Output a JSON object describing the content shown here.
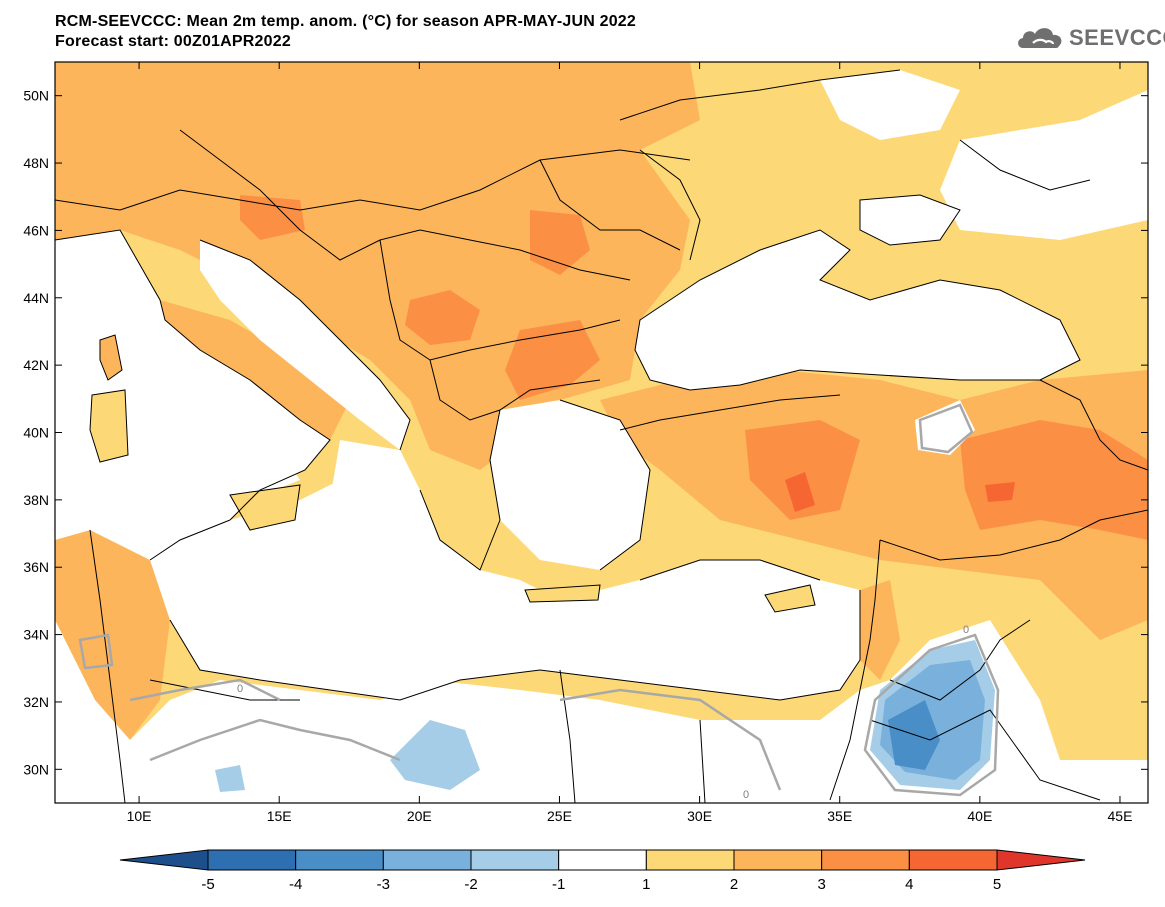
{
  "header": {
    "line1": "RCM-SEEVCCC: Mean 2m temp. anom. (°C) for season APR-MAY-JUN 2022",
    "line2": "Forecast start: 00Z01APR2022"
  },
  "logo": {
    "text": "SEEVCCC",
    "icon": "cloud-icon"
  },
  "map": {
    "lon_range": [
      7,
      46
    ],
    "lat_range": [
      29,
      51
    ],
    "x_ticks": [
      "10E",
      "15E",
      "20E",
      "25E",
      "30E",
      "35E",
      "40E",
      "45E"
    ],
    "y_ticks": [
      "50N",
      "48N",
      "46N",
      "44N",
      "42N",
      "40N",
      "38N",
      "36N",
      "34N",
      "32N",
      "30N"
    ],
    "contour_label": "0"
  },
  "colorbar": {
    "labels": [
      "-5",
      "-4",
      "-3",
      "-2",
      "-1",
      "1",
      "2",
      "3",
      "4",
      "5"
    ],
    "colors": [
      "#1c4f8c",
      "#2e6fb1",
      "#4a8ec8",
      "#79b1dc",
      "#a6cde7",
      "#ffffff",
      "#fdd877",
      "#fdb55c",
      "#fb9045",
      "#f66633",
      "#e0352b"
    ]
  },
  "palette": {
    "water": "#ffffff",
    "anom_1_2": "#fdd877",
    "anom_2_3": "#fdb55c",
    "anom_3_4": "#fb9045",
    "anom_4_5": "#f66633",
    "neg_1_2": "#a6cde7",
    "neg_2_3": "#79b1dc",
    "neg_3_4": "#4a8ec8",
    "neg_4_5": "#2e6fb1",
    "contour_zero": "#a8a8a8"
  }
}
